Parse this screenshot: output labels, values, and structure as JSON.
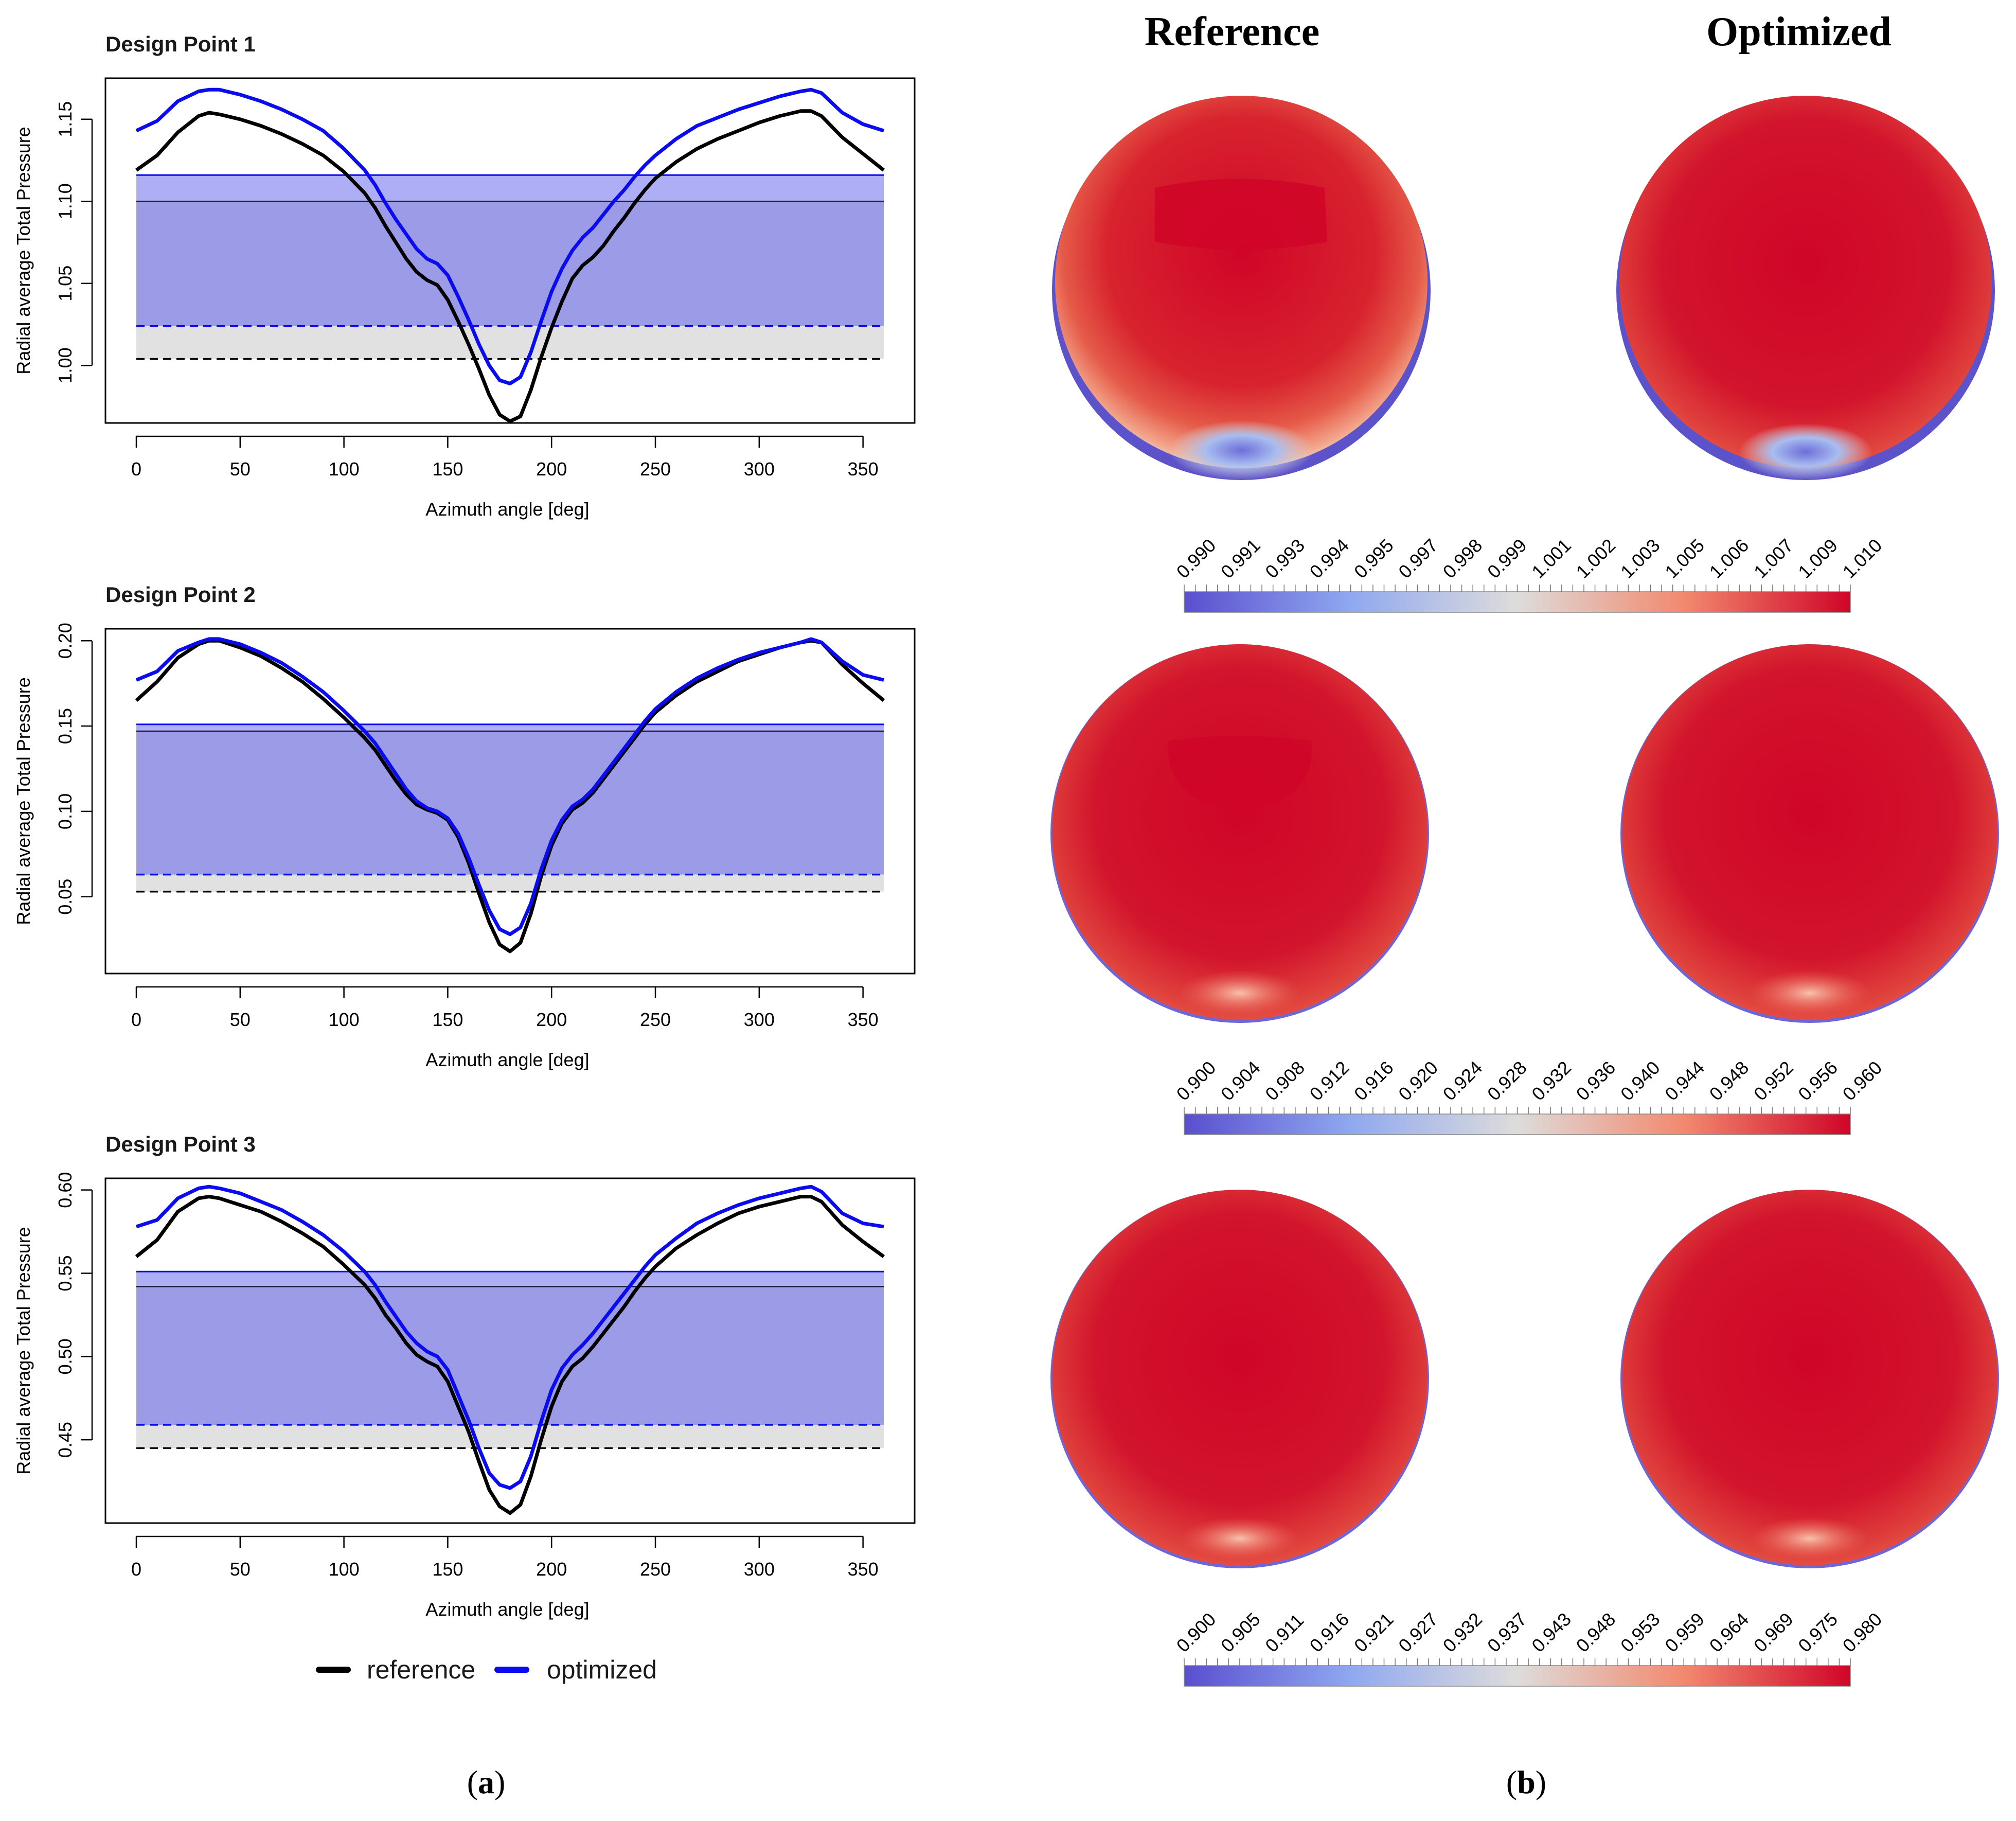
{
  "panel_labels": {
    "a": "a",
    "b": "b"
  },
  "contour_headings": {
    "reference": "Reference",
    "optimized": "Optimized"
  },
  "legend": {
    "reference": "reference",
    "optimized": "optimized"
  },
  "colors": {
    "reference": "#000000",
    "optimized": "#0b0bf0",
    "band_fill": "#9b9be8",
    "band_top_fill": "#aeaef6",
    "gray_band": "#e1e1e1",
    "cmap_low": "#5a4fcf",
    "cmap_mid": "#dedcdb",
    "cmap_high": "#d00528"
  },
  "colorbars": [
    {
      "ticks": [
        "0.990",
        "0.991",
        "0.993",
        "0.994",
        "0.995",
        "0.997",
        "0.998",
        "0.999",
        "1.001",
        "1.002",
        "1.003",
        "1.005",
        "1.006",
        "1.007",
        "1.009",
        "1.010"
      ]
    },
    {
      "ticks": [
        "0.900",
        "0.904",
        "0.908",
        "0.912",
        "0.916",
        "0.920",
        "0.924",
        "0.928",
        "0.932",
        "0.936",
        "0.940",
        "0.944",
        "0.948",
        "0.952",
        "0.956",
        "0.960"
      ]
    },
    {
      "ticks": [
        "0.900",
        "0.905",
        "0.911",
        "0.916",
        "0.921",
        "0.927",
        "0.932",
        "0.937",
        "0.943",
        "0.948",
        "0.953",
        "0.959",
        "0.964",
        "0.969",
        "0.975",
        "0.980"
      ]
    }
  ],
  "chart_data": [
    {
      "type": "line",
      "title": "Design Point 1",
      "xlabel": "Azimuth angle [deg]",
      "ylabel": "Radial average Total Pressure",
      "xlim": [
        0,
        360
      ],
      "ylim": [
        0.965,
        1.175
      ],
      "xticks": [
        0,
        50,
        100,
        150,
        200,
        250,
        300,
        350
      ],
      "yticks": [
        "1.00",
        "1.05",
        "1.10",
        "1.15"
      ],
      "grid": false,
      "bands": {
        "optimized_mean": 1.116,
        "reference_mean": 1.1,
        "optimized_lower": 1.024,
        "reference_lower": 1.004
      },
      "series": [
        {
          "name": "reference",
          "x": [
            0,
            10,
            20,
            30,
            35,
            40,
            50,
            60,
            70,
            80,
            90,
            100,
            110,
            115,
            120,
            125,
            130,
            135,
            140,
            145,
            150,
            155,
            160,
            165,
            170,
            175,
            180,
            185,
            190,
            195,
            200,
            205,
            210,
            215,
            220,
            225,
            230,
            235,
            240,
            245,
            250,
            260,
            270,
            280,
            290,
            300,
            310,
            320,
            325,
            330,
            340,
            350,
            360
          ],
          "y": [
            1.119,
            1.128,
            1.142,
            1.152,
            1.154,
            1.153,
            1.15,
            1.146,
            1.141,
            1.135,
            1.128,
            1.118,
            1.105,
            1.096,
            1.085,
            1.075,
            1.065,
            1.057,
            1.052,
            1.049,
            1.04,
            1.027,
            1.013,
            0.998,
            0.982,
            0.97,
            0.966,
            0.969,
            0.985,
            1.005,
            1.023,
            1.039,
            1.053,
            1.061,
            1.066,
            1.073,
            1.082,
            1.09,
            1.099,
            1.107,
            1.114,
            1.124,
            1.132,
            1.138,
            1.143,
            1.148,
            1.152,
            1.155,
            1.155,
            1.152,
            1.139,
            1.129,
            1.119
          ]
        },
        {
          "name": "optimized",
          "x": [
            0,
            10,
            20,
            30,
            35,
            40,
            50,
            60,
            70,
            80,
            90,
            100,
            110,
            115,
            120,
            125,
            130,
            135,
            140,
            145,
            150,
            155,
            160,
            165,
            170,
            175,
            180,
            185,
            190,
            195,
            200,
            205,
            210,
            215,
            220,
            225,
            230,
            235,
            240,
            245,
            250,
            260,
            270,
            280,
            290,
            300,
            310,
            320,
            325,
            330,
            340,
            350,
            360
          ],
          "y": [
            1.143,
            1.149,
            1.161,
            1.167,
            1.168,
            1.168,
            1.165,
            1.161,
            1.156,
            1.15,
            1.143,
            1.132,
            1.119,
            1.11,
            1.099,
            1.089,
            1.08,
            1.071,
            1.065,
            1.062,
            1.055,
            1.042,
            1.028,
            1.013,
            1.0,
            0.991,
            0.989,
            0.993,
            1.008,
            1.027,
            1.045,
            1.059,
            1.07,
            1.078,
            1.084,
            1.092,
            1.1,
            1.107,
            1.115,
            1.122,
            1.128,
            1.138,
            1.146,
            1.151,
            1.156,
            1.16,
            1.164,
            1.167,
            1.168,
            1.166,
            1.154,
            1.147,
            1.143
          ]
        }
      ]
    },
    {
      "type": "line",
      "title": "Design Point 2",
      "xlabel": "Azimuth angle [deg]",
      "ylabel": "Radial average Total Pressure",
      "xlim": [
        0,
        360
      ],
      "ylim": [
        0.005,
        0.207
      ],
      "xticks": [
        0,
        50,
        100,
        150,
        200,
        250,
        300,
        350
      ],
      "yticks": [
        "0.05",
        "0.10",
        "0.15",
        "0.20"
      ],
      "grid": false,
      "bands": {
        "optimized_mean": 0.151,
        "reference_mean": 0.147,
        "optimized_lower": 0.063,
        "reference_lower": 0.053
      },
      "series": [
        {
          "name": "reference",
          "x": [
            0,
            10,
            20,
            30,
            35,
            40,
            50,
            60,
            70,
            80,
            90,
            100,
            110,
            115,
            120,
            125,
            130,
            135,
            140,
            145,
            150,
            155,
            160,
            165,
            170,
            175,
            180,
            185,
            190,
            195,
            200,
            205,
            210,
            215,
            220,
            225,
            230,
            235,
            240,
            245,
            250,
            260,
            270,
            280,
            290,
            300,
            310,
            320,
            325,
            330,
            340,
            350,
            360
          ],
          "y": [
            0.165,
            0.176,
            0.19,
            0.198,
            0.2,
            0.2,
            0.196,
            0.191,
            0.184,
            0.176,
            0.166,
            0.155,
            0.143,
            0.136,
            0.127,
            0.118,
            0.11,
            0.104,
            0.101,
            0.099,
            0.095,
            0.085,
            0.07,
            0.052,
            0.035,
            0.022,
            0.018,
            0.023,
            0.04,
            0.062,
            0.08,
            0.093,
            0.101,
            0.105,
            0.111,
            0.119,
            0.127,
            0.135,
            0.143,
            0.151,
            0.158,
            0.168,
            0.176,
            0.182,
            0.188,
            0.192,
            0.196,
            0.199,
            0.2,
            0.199,
            0.186,
            0.175,
            0.165
          ]
        },
        {
          "name": "optimized",
          "x": [
            0,
            10,
            20,
            30,
            35,
            40,
            50,
            60,
            70,
            80,
            90,
            100,
            110,
            115,
            120,
            125,
            130,
            135,
            140,
            145,
            150,
            155,
            160,
            165,
            170,
            175,
            180,
            185,
            190,
            195,
            200,
            205,
            210,
            215,
            220,
            225,
            230,
            235,
            240,
            245,
            250,
            260,
            270,
            280,
            290,
            300,
            310,
            320,
            325,
            330,
            340,
            350,
            360
          ],
          "y": [
            0.177,
            0.182,
            0.194,
            0.199,
            0.201,
            0.201,
            0.198,
            0.193,
            0.187,
            0.179,
            0.17,
            0.159,
            0.147,
            0.14,
            0.131,
            0.122,
            0.113,
            0.106,
            0.102,
            0.1,
            0.096,
            0.087,
            0.073,
            0.057,
            0.042,
            0.031,
            0.028,
            0.032,
            0.046,
            0.066,
            0.083,
            0.095,
            0.103,
            0.107,
            0.113,
            0.121,
            0.129,
            0.137,
            0.145,
            0.153,
            0.16,
            0.17,
            0.178,
            0.184,
            0.189,
            0.193,
            0.196,
            0.199,
            0.201,
            0.199,
            0.188,
            0.18,
            0.177
          ]
        }
      ]
    },
    {
      "type": "line",
      "title": "Design Point 3",
      "xlabel": "Azimuth angle [deg]",
      "ylabel": "Radial average Total Pressure",
      "xlim": [
        0,
        360
      ],
      "ylim": [
        0.4,
        0.607
      ],
      "xticks": [
        0,
        50,
        100,
        150,
        200,
        250,
        300,
        350
      ],
      "yticks": [
        "0.45",
        "0.50",
        "0.55",
        "0.60"
      ],
      "grid": false,
      "bands": {
        "optimized_mean": 0.551,
        "reference_mean": 0.542,
        "optimized_lower": 0.459,
        "reference_lower": 0.445
      },
      "series": [
        {
          "name": "reference",
          "x": [
            0,
            10,
            20,
            30,
            35,
            40,
            50,
            60,
            70,
            80,
            90,
            100,
            110,
            115,
            120,
            125,
            130,
            135,
            140,
            145,
            150,
            155,
            160,
            165,
            170,
            175,
            180,
            185,
            190,
            195,
            200,
            205,
            210,
            215,
            220,
            225,
            230,
            235,
            240,
            245,
            250,
            260,
            270,
            280,
            290,
            300,
            310,
            320,
            325,
            330,
            340,
            350,
            360
          ],
          "y": [
            0.56,
            0.57,
            0.587,
            0.595,
            0.596,
            0.595,
            0.591,
            0.587,
            0.581,
            0.574,
            0.566,
            0.555,
            0.543,
            0.535,
            0.525,
            0.517,
            0.508,
            0.501,
            0.497,
            0.494,
            0.485,
            0.47,
            0.455,
            0.437,
            0.42,
            0.41,
            0.406,
            0.411,
            0.428,
            0.45,
            0.47,
            0.485,
            0.494,
            0.499,
            0.506,
            0.514,
            0.522,
            0.53,
            0.539,
            0.547,
            0.554,
            0.565,
            0.573,
            0.58,
            0.586,
            0.59,
            0.593,
            0.596,
            0.596,
            0.593,
            0.579,
            0.569,
            0.56
          ]
        },
        {
          "name": "optimized",
          "x": [
            0,
            10,
            20,
            30,
            35,
            40,
            50,
            60,
            70,
            80,
            90,
            100,
            110,
            115,
            120,
            125,
            130,
            135,
            140,
            145,
            150,
            155,
            160,
            165,
            170,
            175,
            180,
            185,
            190,
            195,
            200,
            205,
            210,
            215,
            220,
            225,
            230,
            235,
            240,
            245,
            250,
            260,
            270,
            280,
            290,
            300,
            310,
            320,
            325,
            330,
            340,
            350,
            360
          ],
          "y": [
            0.578,
            0.582,
            0.595,
            0.601,
            0.602,
            0.601,
            0.598,
            0.593,
            0.588,
            0.581,
            0.573,
            0.563,
            0.551,
            0.543,
            0.533,
            0.524,
            0.515,
            0.508,
            0.503,
            0.5,
            0.492,
            0.477,
            0.462,
            0.445,
            0.43,
            0.423,
            0.421,
            0.425,
            0.44,
            0.461,
            0.48,
            0.493,
            0.501,
            0.507,
            0.514,
            0.522,
            0.53,
            0.538,
            0.546,
            0.554,
            0.561,
            0.571,
            0.58,
            0.586,
            0.591,
            0.595,
            0.598,
            0.601,
            0.602,
            0.599,
            0.586,
            0.58,
            0.578
          ]
        }
      ]
    }
  ]
}
